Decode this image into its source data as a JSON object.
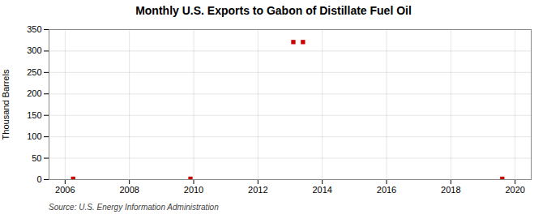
{
  "chart_data": {
    "type": "scatter",
    "title": "Monthly U.S. Exports to Gabon of Distillate Fuel Oil",
    "ylabel": "Thousand Barrels",
    "source": "Source: U.S. Energy Information Administration",
    "x": [
      2006.25,
      2009.9,
      2013.1,
      2013.4,
      2019.6
    ],
    "values": [
      2,
      2,
      321,
      321,
      2
    ],
    "color": "#cc0000",
    "marker": "square",
    "xlim": [
      2005.5,
      2020.5
    ],
    "ylim": [
      0,
      350
    ],
    "xticks": [
      2006,
      2008,
      2010,
      2012,
      2014,
      2016,
      2018,
      2020
    ],
    "yticks": [
      0,
      50,
      100,
      150,
      200,
      250,
      300,
      350
    ],
    "grid": true
  }
}
